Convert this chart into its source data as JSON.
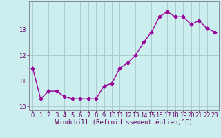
{
  "x": [
    0,
    1,
    2,
    3,
    4,
    5,
    6,
    7,
    8,
    9,
    10,
    11,
    12,
    13,
    14,
    15,
    16,
    17,
    18,
    19,
    20,
    21,
    22,
    23
  ],
  "y": [
    11.5,
    10.3,
    10.6,
    10.6,
    10.4,
    10.3,
    10.3,
    10.3,
    10.3,
    10.8,
    10.9,
    11.5,
    11.7,
    12.0,
    12.5,
    12.9,
    13.5,
    13.7,
    13.5,
    13.5,
    13.2,
    13.35,
    13.05,
    12.9
  ],
  "line_color": "#990099",
  "marker": "D",
  "marker_size": 2.5,
  "bg_color": "#cceeee",
  "grid_color": "#aacccc",
  "xlabel": "Windchill (Refroidissement éolien,°C)",
  "ylim": [
    9.85,
    14.1
  ],
  "xlim": [
    -0.5,
    23.5
  ],
  "xticks": [
    0,
    1,
    2,
    3,
    4,
    5,
    6,
    7,
    8,
    9,
    10,
    11,
    12,
    13,
    14,
    15,
    16,
    17,
    18,
    19,
    20,
    21,
    22,
    23
  ],
  "yticks": [
    10,
    11,
    12,
    13
  ],
  "tick_color": "#660066",
  "label_color": "#660066",
  "xlabel_fontsize": 6.5,
  "tick_fontsize": 6,
  "linewidth": 1.0
}
